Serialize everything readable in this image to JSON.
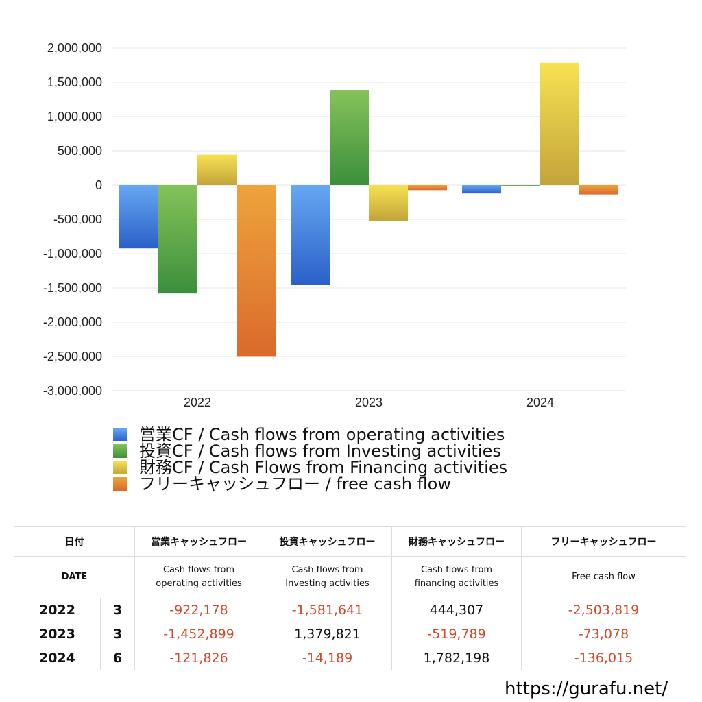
{
  "chart_data": {
    "type": "bar",
    "categories": [
      "2022",
      "2023",
      "2024"
    ],
    "series": [
      {
        "name": "営業CF / Cash flows from operating activities",
        "values": [
          -922178,
          -1452899,
          -121826
        ],
        "color_top": "#66a8f2",
        "color_bottom": "#2a60c8"
      },
      {
        "name": "投資CF / Cash flows from Investing activities",
        "values": [
          -1581641,
          1379821,
          -14189
        ],
        "color_top": "#86c25a",
        "color_bottom": "#3b8f3b"
      },
      {
        "name": "財務CF / Cash Flows from Financing activities",
        "values": [
          444307,
          -519789,
          1782198
        ],
        "color_top": "#f7e252",
        "color_bottom": "#c2a43a"
      },
      {
        "name": "フリーキャッシュフロー / free cash flow",
        "values": [
          -2503819,
          -73078,
          -136015
        ],
        "color_top": "#eea33c",
        "color_bottom": "#d96a2c"
      }
    ],
    "ylim": [
      -3000000,
      2000000
    ],
    "yticks": [
      2000000,
      1500000,
      1000000,
      500000,
      0,
      -500000,
      -1000000,
      -1500000,
      -2000000,
      -2500000,
      -3000000
    ],
    "ytick_labels": [
      "2,000,000",
      "1,500,000",
      "1,000,000",
      "500,000",
      "0",
      "-500,000",
      "-1,000,000",
      "-1,500,000",
      "-2,000,000",
      "-2,500,000",
      "-3,000,000"
    ],
    "grid": true,
    "legend_position": "bottom-left"
  },
  "table": {
    "header_row1": {
      "date": "日付",
      "operating": "営業キャッシュフロー",
      "investing": "投資キャッシュフロー",
      "financing": "財務キャッシュフロー",
      "free": "フリーキャッシュフロー"
    },
    "header_row2": {
      "date": "DATE",
      "operating": "Cash flows from\noperating activities",
      "investing": "Cash flows from\nInvesting activities",
      "financing": "Cash flows from\nfinancing activities",
      "free": "Free cash flow"
    },
    "rows": [
      {
        "year": "2022",
        "month": "3",
        "operating": "-922,178",
        "investing": "-1,581,641",
        "financing": "444,307",
        "free": "-2,503,819"
      },
      {
        "year": "2023",
        "month": "3",
        "operating": "-1,452,899",
        "investing": "1,379,821",
        "financing": "-519,789",
        "free": "-73,078"
      },
      {
        "year": "2024",
        "month": "6",
        "operating": "-121,826",
        "investing": "-14,189",
        "financing": "1,782,198",
        "free": "-136,015"
      }
    ]
  },
  "source_url": "https://gurafu.net/"
}
